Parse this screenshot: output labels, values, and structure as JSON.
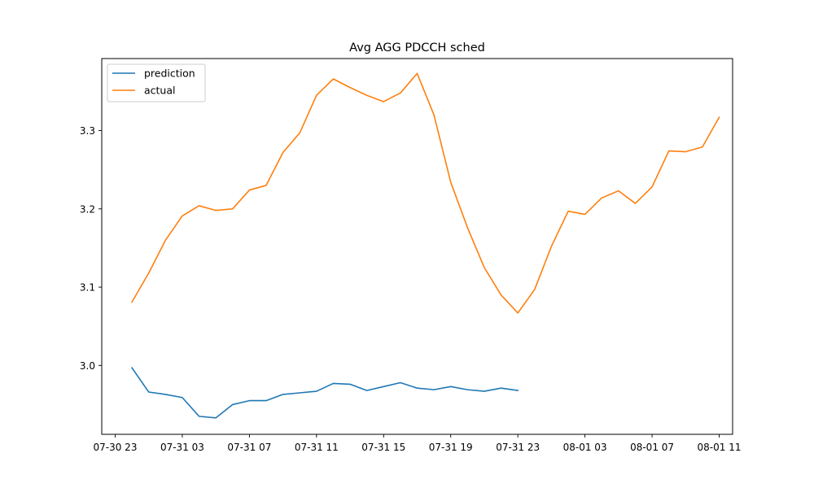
{
  "chart_data": {
    "type": "line",
    "title": "Avg AGG PDCCH sched",
    "xlabel": "",
    "ylabel": "",
    "x_type": "datetime",
    "x_range": [
      "2023-07-30 22:12",
      "2023-08-01 11:48"
    ],
    "ylim": [
      2.912,
      3.392
    ],
    "grid": false,
    "legend_position": "top-left",
    "x_ticks": [
      {
        "t": "2023-07-30 23:00",
        "label": "07-30 23"
      },
      {
        "t": "2023-07-31 03:00",
        "label": "07-31 03"
      },
      {
        "t": "2023-07-31 07:00",
        "label": "07-31 07"
      },
      {
        "t": "2023-07-31 11:00",
        "label": "07-31 11"
      },
      {
        "t": "2023-07-31 15:00",
        "label": "07-31 15"
      },
      {
        "t": "2023-07-31 19:00",
        "label": "07-31 19"
      },
      {
        "t": "2023-07-31 23:00",
        "label": "07-31 23"
      },
      {
        "t": "2023-08-01 03:00",
        "label": "08-01 03"
      },
      {
        "t": "2023-08-01 07:00",
        "label": "08-01 07"
      },
      {
        "t": "2023-08-01 11:00",
        "label": "08-01 11"
      }
    ],
    "y_ticks": [
      {
        "v": 3.0,
        "label": "3.0"
      },
      {
        "v": 3.1,
        "label": "3.1"
      },
      {
        "v": 3.2,
        "label": "3.2"
      },
      {
        "v": 3.3,
        "label": "3.3"
      }
    ],
    "series": [
      {
        "name": "prediction",
        "color": "#1f77b4",
        "x": [
          "2023-07-31 00:00",
          "2023-07-31 01:00",
          "2023-07-31 02:00",
          "2023-07-31 03:00",
          "2023-07-31 04:00",
          "2023-07-31 05:00",
          "2023-07-31 06:00",
          "2023-07-31 07:00",
          "2023-07-31 08:00",
          "2023-07-31 09:00",
          "2023-07-31 10:00",
          "2023-07-31 11:00",
          "2023-07-31 12:00",
          "2023-07-31 13:00",
          "2023-07-31 14:00",
          "2023-07-31 15:00",
          "2023-07-31 16:00",
          "2023-07-31 17:00",
          "2023-07-31 18:00",
          "2023-07-31 19:00",
          "2023-07-31 20:00",
          "2023-07-31 21:00",
          "2023-07-31 22:00",
          "2023-07-31 23:00"
        ],
        "values": [
          2.997,
          2.966,
          2.963,
          2.959,
          2.935,
          2.933,
          2.95,
          2.955,
          2.955,
          2.963,
          2.965,
          2.967,
          2.977,
          2.976,
          2.968,
          2.973,
          2.978,
          2.971,
          2.969,
          2.973,
          2.969,
          2.967,
          2.971,
          2.968
        ]
      },
      {
        "name": "actual",
        "color": "#ff7f0e",
        "x": [
          "2023-07-31 00:00",
          "2023-07-31 01:00",
          "2023-07-31 02:00",
          "2023-07-31 03:00",
          "2023-07-31 04:00",
          "2023-07-31 05:00",
          "2023-07-31 06:00",
          "2023-07-31 07:00",
          "2023-07-31 08:00",
          "2023-07-31 09:00",
          "2023-07-31 10:00",
          "2023-07-31 11:00",
          "2023-07-31 12:00",
          "2023-07-31 13:00",
          "2023-07-31 14:00",
          "2023-07-31 15:00",
          "2023-07-31 16:00",
          "2023-07-31 17:00",
          "2023-07-31 18:00",
          "2023-07-31 19:00",
          "2023-07-31 20:00",
          "2023-07-31 21:00",
          "2023-07-31 22:00",
          "2023-07-31 23:00",
          "2023-08-01 00:00",
          "2023-08-01 01:00",
          "2023-08-01 02:00",
          "2023-08-01 03:00",
          "2023-08-01 04:00",
          "2023-08-01 05:00",
          "2023-08-01 06:00",
          "2023-08-01 07:00",
          "2023-08-01 08:00",
          "2023-08-01 09:00",
          "2023-08-01 10:00",
          "2023-08-01 11:00"
        ],
        "values": [
          3.081,
          3.118,
          3.16,
          3.191,
          3.204,
          3.198,
          3.2,
          3.224,
          3.23,
          3.272,
          3.297,
          3.345,
          3.366,
          3.355,
          3.345,
          3.337,
          3.348,
          3.373,
          3.32,
          3.234,
          3.176,
          3.125,
          3.09,
          3.067,
          3.097,
          3.152,
          3.197,
          3.193,
          3.214,
          3.223,
          3.207,
          3.228,
          3.274,
          3.273,
          3.279,
          3.317
        ]
      }
    ]
  }
}
